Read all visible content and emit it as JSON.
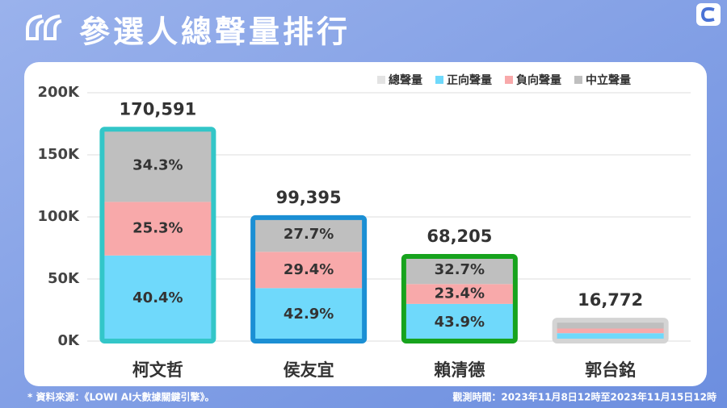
{
  "chart_data": {
    "type": "stacked_bar",
    "title": "參選人總聲量排行",
    "categories": [
      "柯文哲",
      "侯友宜",
      "賴清德",
      "郭台銘"
    ],
    "total": {
      "name": "總聲量",
      "color": "#e3e3e3",
      "values": [
        170591,
        99395,
        68205,
        16772
      ],
      "value_labels": [
        "170,591",
        "99,395",
        "68,205",
        "16,772"
      ],
      "outline_colors": [
        "#33c6c8",
        "#1b8fd4",
        "#17a31d",
        "#d4d4d4"
      ]
    },
    "series": [
      {
        "name": "正向聲量",
        "color": "#6fd9fb",
        "values": [
          40.4,
          42.9,
          43.9,
          38
        ],
        "value_labels": [
          "40.4%",
          "42.9%",
          "43.9%",
          null
        ]
      },
      {
        "name": "負向聲量",
        "color": "#f8a9aa",
        "values": [
          25.3,
          29.4,
          23.4,
          22
        ],
        "value_labels": [
          "25.3%",
          "29.4%",
          "23.4%",
          null
        ]
      },
      {
        "name": "中立聲量",
        "color": "#bfbfbf",
        "values": [
          34.3,
          27.7,
          32.7,
          40
        ],
        "value_labels": [
          "34.3%",
          "27.7%",
          "32.7%",
          null
        ]
      }
    ],
    "ylim": [
      0,
      200000
    ],
    "yticks": [
      {
        "value": 0,
        "label": "0K"
      },
      {
        "value": 50000,
        "label": "50K"
      },
      {
        "value": 100000,
        "label": "100K"
      },
      {
        "value": 150000,
        "label": "150K"
      },
      {
        "value": 200000,
        "label": "200K"
      }
    ],
    "grid": true,
    "legend": "top-right",
    "source": "* 資料來源：《LOWI AI大數據關鍵引擎》。",
    "period": "觀測時間：2023年11月8日12時至2023年11月15日12時"
  }
}
